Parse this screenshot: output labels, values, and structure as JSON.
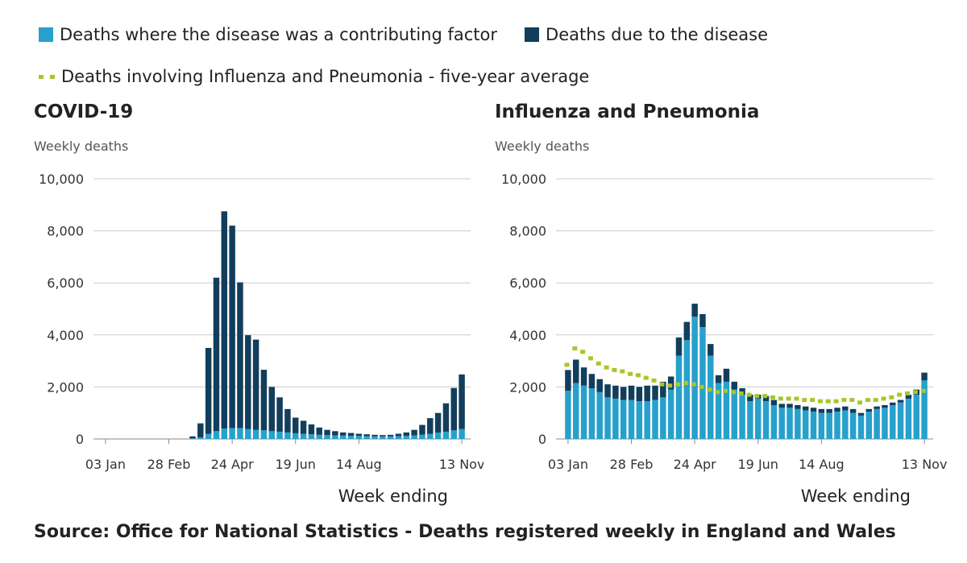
{
  "legend": {
    "contributing": {
      "label": "Deaths where the disease was a contributing factor",
      "color": "#27a0cc"
    },
    "due": {
      "label": "Deaths due to the disease",
      "color": "#123e5c"
    },
    "average": {
      "label": "Deaths involving Influenza and Pneumonia - five-year average",
      "color": "#a8c62c"
    }
  },
  "source": "Source: Office for National Statistics - Deaths registered weekly in England and Wales",
  "chart_data": [
    {
      "type": "bar",
      "stacked": true,
      "title": "COVID-19",
      "ylabel": "Weekly deaths",
      "xlabel": "Week ending",
      "ylim": [
        0,
        10000
      ],
      "yticks": [
        "0",
        "2,000",
        "4,000",
        "6,000",
        "8,000",
        "10,000"
      ],
      "ytick_values": [
        0,
        2000,
        4000,
        6000,
        8000,
        10000
      ],
      "xticks": [
        {
          "label": "03 Jan",
          "week": 1
        },
        {
          "label": "28 Feb",
          "week": 9
        },
        {
          "label": "24 Apr",
          "week": 17
        },
        {
          "label": "19 Jun",
          "week": 25
        },
        {
          "label": "14 Aug",
          "week": 33
        },
        {
          "label": "13 Nov",
          "week": 46
        }
      ],
      "weeks": 46,
      "grid": true,
      "series": [
        {
          "name": "Deaths where the disease was a contributing factor",
          "values": [
            0,
            0,
            0,
            0,
            0,
            0,
            0,
            0,
            0,
            0,
            0,
            20,
            60,
            200,
            300,
            400,
            420,
            420,
            380,
            350,
            340,
            300,
            280,
            250,
            220,
            200,
            180,
            160,
            150,
            140,
            130,
            120,
            120,
            110,
            100,
            100,
            100,
            110,
            120,
            140,
            170,
            200,
            240,
            280,
            330,
            380
          ]
        },
        {
          "name": "Deaths due to the disease",
          "values": [
            0,
            0,
            0,
            0,
            0,
            0,
            0,
            0,
            0,
            0,
            0,
            80,
            540,
            3300,
            5900,
            8350,
            7780,
            5600,
            3610,
            3470,
            2320,
            1700,
            1320,
            900,
            600,
            500,
            380,
            280,
            200,
            160,
            120,
            110,
            80,
            70,
            60,
            50,
            60,
            90,
            130,
            210,
            370,
            600,
            760,
            1090,
            1630,
            2100
          ]
        }
      ]
    },
    {
      "type": "bar",
      "stacked": true,
      "title": "Influenza and Pneumonia",
      "ylabel": "Weekly deaths",
      "xlabel": "Week ending",
      "ylim": [
        0,
        10000
      ],
      "yticks": [
        "0",
        "2,000",
        "4,000",
        "6,000",
        "8,000",
        "10,000"
      ],
      "ytick_values": [
        0,
        2000,
        4000,
        6000,
        8000,
        10000
      ],
      "xticks": [
        {
          "label": "03 Jan",
          "week": 1
        },
        {
          "label": "28 Feb",
          "week": 9
        },
        {
          "label": "24 Apr",
          "week": 17
        },
        {
          "label": "19 Jun",
          "week": 25
        },
        {
          "label": "14 Aug",
          "week": 33
        },
        {
          "label": "13 Nov",
          "week": 46
        }
      ],
      "weeks": 46,
      "grid": true,
      "series": [
        {
          "name": "Deaths where the disease was a contributing factor",
          "values": [
            1850,
            2150,
            2050,
            1950,
            1800,
            1600,
            1550,
            1500,
            1500,
            1450,
            1450,
            1500,
            1600,
            1900,
            3200,
            3800,
            4700,
            4300,
            3200,
            2150,
            2200,
            1900,
            1700,
            1450,
            1550,
            1450,
            1300,
            1200,
            1200,
            1150,
            1100,
            1050,
            1000,
            1000,
            1050,
            1100,
            1000,
            900,
            1050,
            1150,
            1200,
            1300,
            1400,
            1550,
            1700,
            2250
          ]
        },
        {
          "name": "Deaths due to the disease",
          "values": [
            800,
            900,
            700,
            550,
            500,
            500,
            500,
            500,
            550,
            550,
            600,
            550,
            600,
            500,
            700,
            700,
            500,
            500,
            450,
            300,
            500,
            300,
            250,
            250,
            150,
            200,
            200,
            150,
            150,
            150,
            150,
            150,
            150,
            150,
            150,
            150,
            150,
            100,
            100,
            100,
            100,
            100,
            100,
            150,
            200,
            300
          ]
        },
        {
          "name": "Deaths involving Influenza and Pneumonia - five-year average",
          "line": true,
          "values": [
            2850,
            3480,
            3350,
            3100,
            2900,
            2750,
            2650,
            2600,
            2500,
            2450,
            2350,
            2250,
            2100,
            2050,
            2100,
            2150,
            2100,
            2000,
            1900,
            1800,
            1850,
            1800,
            1750,
            1700,
            1650,
            1650,
            1600,
            1550,
            1550,
            1550,
            1500,
            1500,
            1450,
            1450,
            1450,
            1500,
            1500,
            1400,
            1500,
            1500,
            1550,
            1600,
            1700,
            1750,
            1800,
            1850
          ]
        }
      ]
    }
  ]
}
